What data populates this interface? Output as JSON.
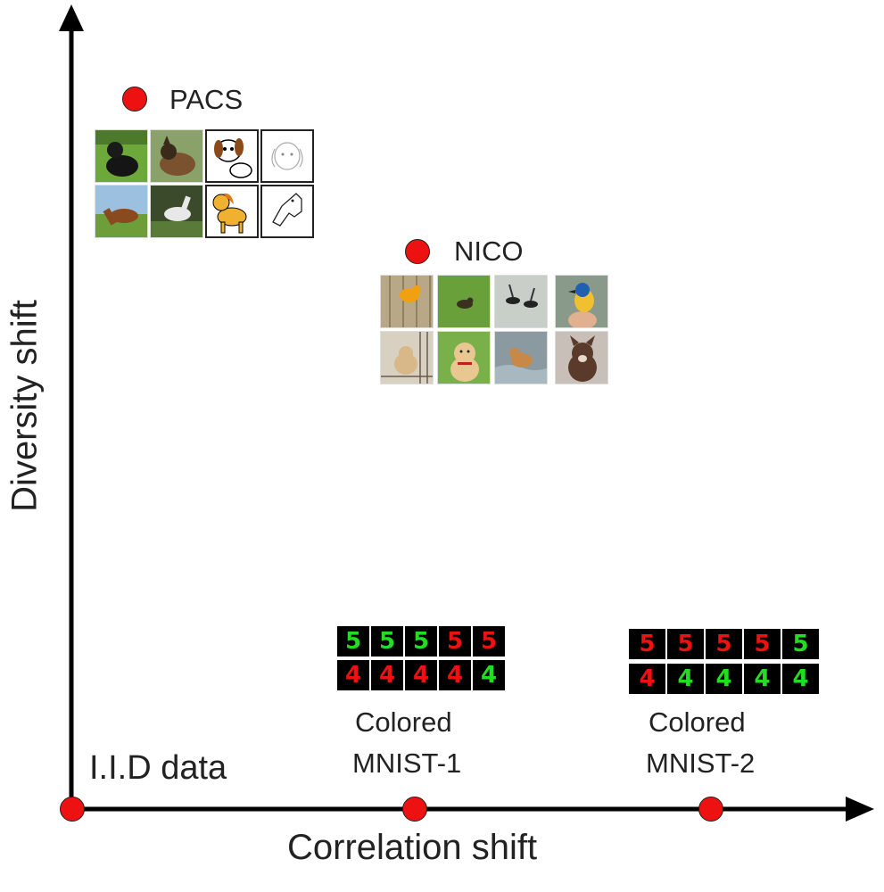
{
  "axes": {
    "x_label": "Correlation shift",
    "y_label": "Diversity shift"
  },
  "points": {
    "iid": {
      "label": "I.I.D data"
    },
    "cmnist1": {
      "label_line1": "Colored",
      "label_line2": "MNIST-1"
    },
    "cmnist2": {
      "label_line1": "Colored",
      "label_line2": "MNIST-2"
    },
    "pacs": {
      "label": "PACS"
    },
    "nico": {
      "label": "NICO"
    }
  },
  "mnist1": {
    "row1": {
      "digit": "5",
      "colors": [
        "g",
        "g",
        "g",
        "r",
        "r"
      ]
    },
    "row2": {
      "digit": "4",
      "colors": [
        "r",
        "r",
        "r",
        "r",
        "g"
      ]
    }
  },
  "mnist2": {
    "row1": {
      "digit": "5",
      "colors": [
        "r",
        "r",
        "r",
        "r",
        "g"
      ]
    },
    "row2": {
      "digit": "4",
      "colors": [
        "r",
        "g",
        "g",
        "g",
        "g"
      ]
    }
  },
  "colors": {
    "dot": "#ee1111",
    "axis": "#000000",
    "green_digit": "#22dd22",
    "red_digit": "#ee1111"
  }
}
